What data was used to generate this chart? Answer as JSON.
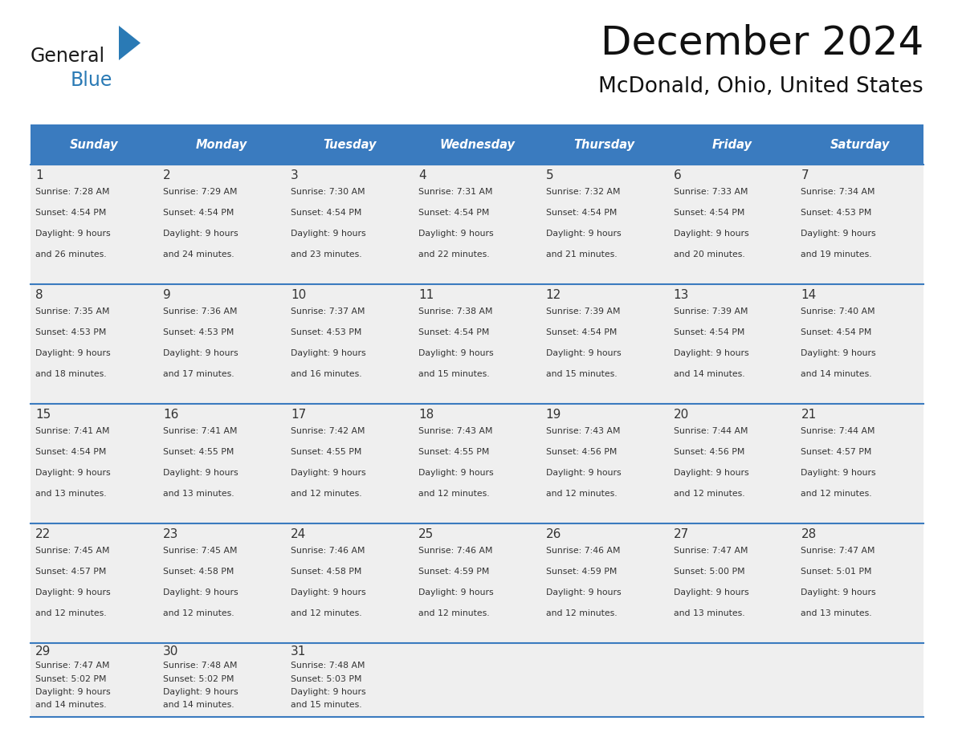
{
  "title": "December 2024",
  "subtitle": "McDonald, Ohio, United States",
  "days_of_week": [
    "Sunday",
    "Monday",
    "Tuesday",
    "Wednesday",
    "Thursday",
    "Friday",
    "Saturday"
  ],
  "header_bg": "#3a7bbf",
  "header_text_color": "#ffffff",
  "row_bg": "#efefef",
  "cell_text_color": "#333333",
  "border_color": "#3a7bbf",
  "calendar_data": [
    [
      {
        "day": 1,
        "sunrise": "7:28 AM",
        "sunset": "4:54 PM",
        "daylight_h": "9 hours",
        "daylight_m": "and 26 minutes."
      },
      {
        "day": 2,
        "sunrise": "7:29 AM",
        "sunset": "4:54 PM",
        "daylight_h": "9 hours",
        "daylight_m": "and 24 minutes."
      },
      {
        "day": 3,
        "sunrise": "7:30 AM",
        "sunset": "4:54 PM",
        "daylight_h": "9 hours",
        "daylight_m": "and 23 minutes."
      },
      {
        "day": 4,
        "sunrise": "7:31 AM",
        "sunset": "4:54 PM",
        "daylight_h": "9 hours",
        "daylight_m": "and 22 minutes."
      },
      {
        "day": 5,
        "sunrise": "7:32 AM",
        "sunset": "4:54 PM",
        "daylight_h": "9 hours",
        "daylight_m": "and 21 minutes."
      },
      {
        "day": 6,
        "sunrise": "7:33 AM",
        "sunset": "4:54 PM",
        "daylight_h": "9 hours",
        "daylight_m": "and 20 minutes."
      },
      {
        "day": 7,
        "sunrise": "7:34 AM",
        "sunset": "4:53 PM",
        "daylight_h": "9 hours",
        "daylight_m": "and 19 minutes."
      }
    ],
    [
      {
        "day": 8,
        "sunrise": "7:35 AM",
        "sunset": "4:53 PM",
        "daylight_h": "9 hours",
        "daylight_m": "and 18 minutes."
      },
      {
        "day": 9,
        "sunrise": "7:36 AM",
        "sunset": "4:53 PM",
        "daylight_h": "9 hours",
        "daylight_m": "and 17 minutes."
      },
      {
        "day": 10,
        "sunrise": "7:37 AM",
        "sunset": "4:53 PM",
        "daylight_h": "9 hours",
        "daylight_m": "and 16 minutes."
      },
      {
        "day": 11,
        "sunrise": "7:38 AM",
        "sunset": "4:54 PM",
        "daylight_h": "9 hours",
        "daylight_m": "and 15 minutes."
      },
      {
        "day": 12,
        "sunrise": "7:39 AM",
        "sunset": "4:54 PM",
        "daylight_h": "9 hours",
        "daylight_m": "and 15 minutes."
      },
      {
        "day": 13,
        "sunrise": "7:39 AM",
        "sunset": "4:54 PM",
        "daylight_h": "9 hours",
        "daylight_m": "and 14 minutes."
      },
      {
        "day": 14,
        "sunrise": "7:40 AM",
        "sunset": "4:54 PM",
        "daylight_h": "9 hours",
        "daylight_m": "and 14 minutes."
      }
    ],
    [
      {
        "day": 15,
        "sunrise": "7:41 AM",
        "sunset": "4:54 PM",
        "daylight_h": "9 hours",
        "daylight_m": "and 13 minutes."
      },
      {
        "day": 16,
        "sunrise": "7:41 AM",
        "sunset": "4:55 PM",
        "daylight_h": "9 hours",
        "daylight_m": "and 13 minutes."
      },
      {
        "day": 17,
        "sunrise": "7:42 AM",
        "sunset": "4:55 PM",
        "daylight_h": "9 hours",
        "daylight_m": "and 12 minutes."
      },
      {
        "day": 18,
        "sunrise": "7:43 AM",
        "sunset": "4:55 PM",
        "daylight_h": "9 hours",
        "daylight_m": "and 12 minutes."
      },
      {
        "day": 19,
        "sunrise": "7:43 AM",
        "sunset": "4:56 PM",
        "daylight_h": "9 hours",
        "daylight_m": "and 12 minutes."
      },
      {
        "day": 20,
        "sunrise": "7:44 AM",
        "sunset": "4:56 PM",
        "daylight_h": "9 hours",
        "daylight_m": "and 12 minutes."
      },
      {
        "day": 21,
        "sunrise": "7:44 AM",
        "sunset": "4:57 PM",
        "daylight_h": "9 hours",
        "daylight_m": "and 12 minutes."
      }
    ],
    [
      {
        "day": 22,
        "sunrise": "7:45 AM",
        "sunset": "4:57 PM",
        "daylight_h": "9 hours",
        "daylight_m": "and 12 minutes."
      },
      {
        "day": 23,
        "sunrise": "7:45 AM",
        "sunset": "4:58 PM",
        "daylight_h": "9 hours",
        "daylight_m": "and 12 minutes."
      },
      {
        "day": 24,
        "sunrise": "7:46 AM",
        "sunset": "4:58 PM",
        "daylight_h": "9 hours",
        "daylight_m": "and 12 minutes."
      },
      {
        "day": 25,
        "sunrise": "7:46 AM",
        "sunset": "4:59 PM",
        "daylight_h": "9 hours",
        "daylight_m": "and 12 minutes."
      },
      {
        "day": 26,
        "sunrise": "7:46 AM",
        "sunset": "4:59 PM",
        "daylight_h": "9 hours",
        "daylight_m": "and 12 minutes."
      },
      {
        "day": 27,
        "sunrise": "7:47 AM",
        "sunset": "5:00 PM",
        "daylight_h": "9 hours",
        "daylight_m": "and 13 minutes."
      },
      {
        "day": 28,
        "sunrise": "7:47 AM",
        "sunset": "5:01 PM",
        "daylight_h": "9 hours",
        "daylight_m": "and 13 minutes."
      }
    ],
    [
      {
        "day": 29,
        "sunrise": "7:47 AM",
        "sunset": "5:02 PM",
        "daylight_h": "9 hours",
        "daylight_m": "and 14 minutes."
      },
      {
        "day": 30,
        "sunrise": "7:48 AM",
        "sunset": "5:02 PM",
        "daylight_h": "9 hours",
        "daylight_m": "and 14 minutes."
      },
      {
        "day": 31,
        "sunrise": "7:48 AM",
        "sunset": "5:03 PM",
        "daylight_h": "9 hours",
        "daylight_m": "and 15 minutes."
      },
      null,
      null,
      null,
      null
    ]
  ],
  "logo_text_general": "General",
  "logo_text_blue": "Blue",
  "logo_color_general": "#1a1a1a",
  "logo_color_blue": "#2a7ab5",
  "logo_triangle_color": "#2a7ab5",
  "figwidth": 11.88,
  "figheight": 9.18,
  "dpi": 100
}
